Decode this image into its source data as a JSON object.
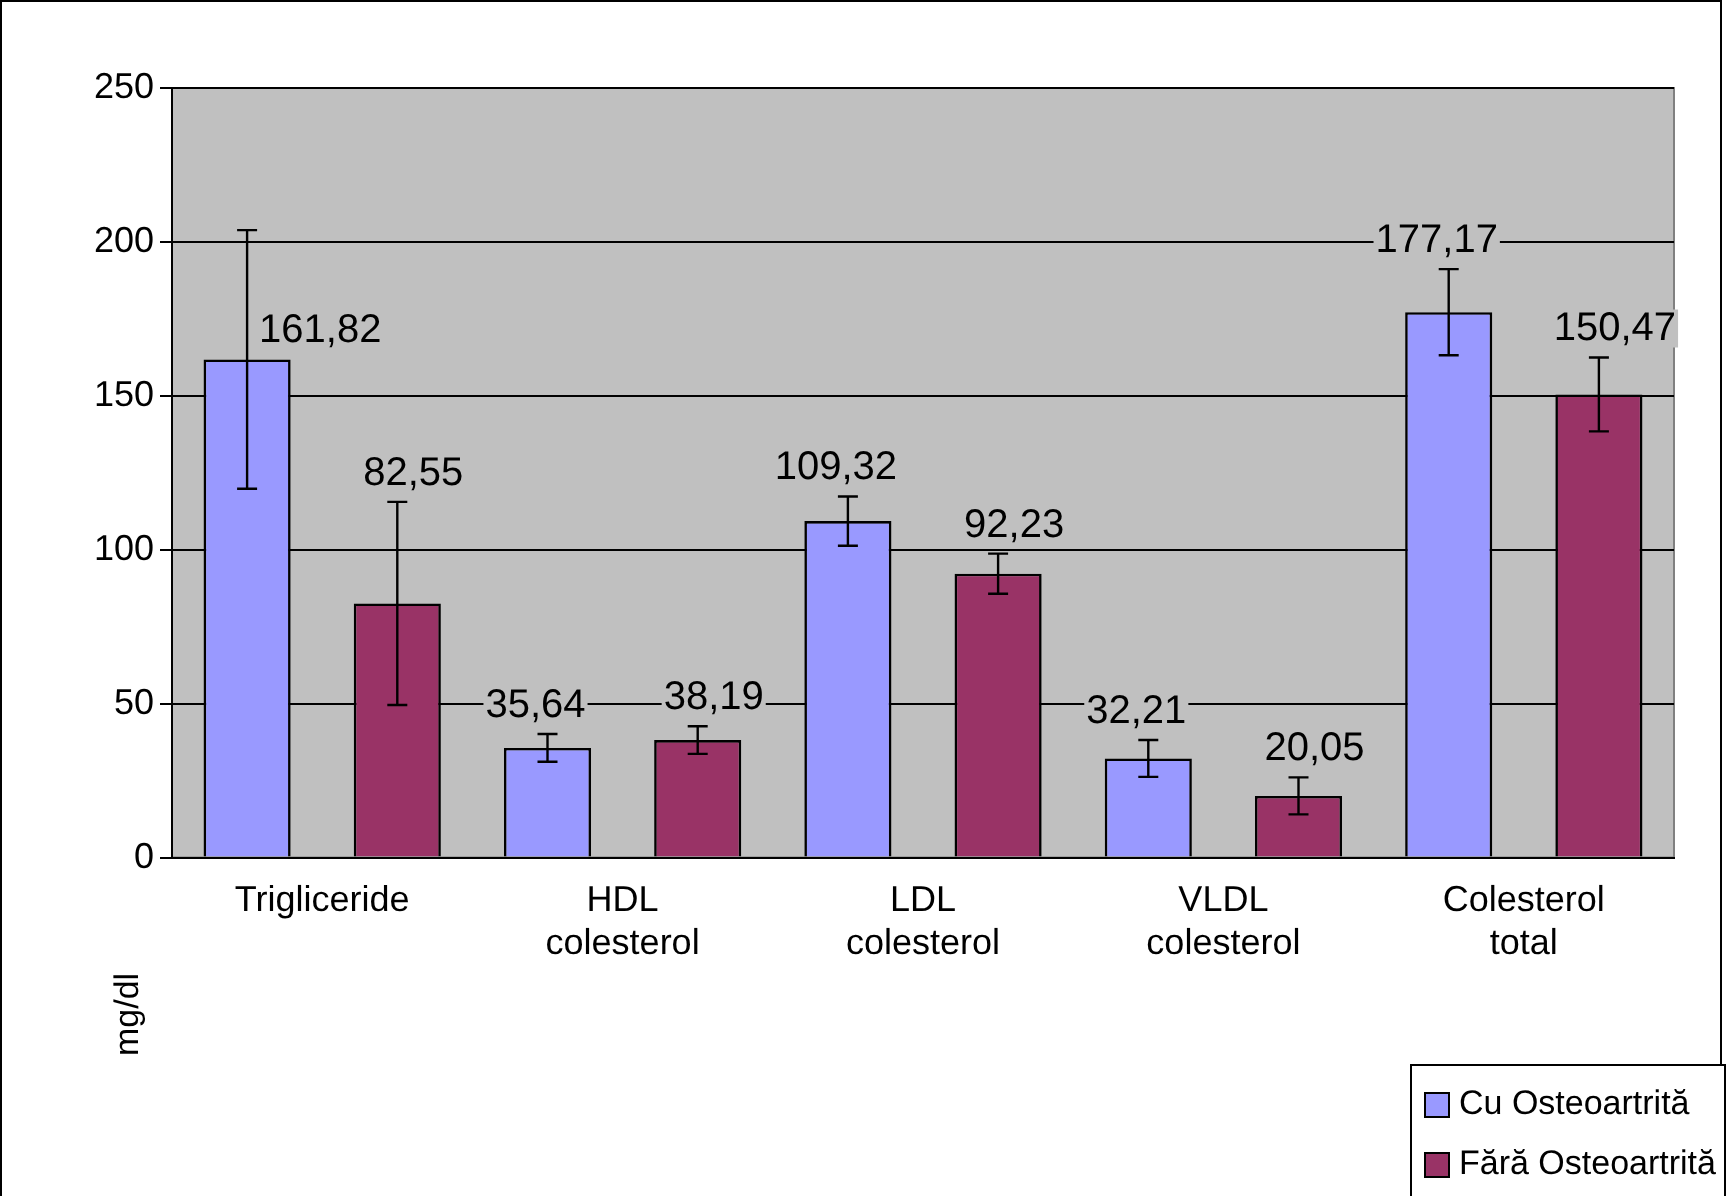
{
  "chart_data": {
    "type": "bar",
    "ylabel": "mg/dl",
    "categories": [
      "Trigliceride",
      "HDL colesterol",
      "LDL colesterol",
      "VLDL colesterol",
      "Colesterol total"
    ],
    "series": [
      {
        "name": "Cu Osteoartrită",
        "color": "#9999ff",
        "values": [
          161.82,
          35.64,
          109.32,
          32.21,
          177.17
        ],
        "errors": [
          42,
          4.5,
          8,
          6,
          14
        ],
        "value_labels": [
          "161,82",
          "35,64",
          "109,32",
          "32,21",
          "177,17"
        ]
      },
      {
        "name": "Fără Osteoartrită",
        "color": "#993366",
        "values": [
          82.55,
          38.19,
          92.23,
          20.05,
          150.47
        ],
        "errors": [
          33,
          4.5,
          6.5,
          6,
          12
        ],
        "value_labels": [
          "82,55",
          "38,19",
          "92,23",
          "20,05",
          "150,47"
        ]
      }
    ],
    "ylim": [
      0,
      250
    ],
    "yticks": [
      0,
      50,
      100,
      150,
      200,
      250
    ],
    "grid": "y",
    "legend": "bottom right"
  }
}
